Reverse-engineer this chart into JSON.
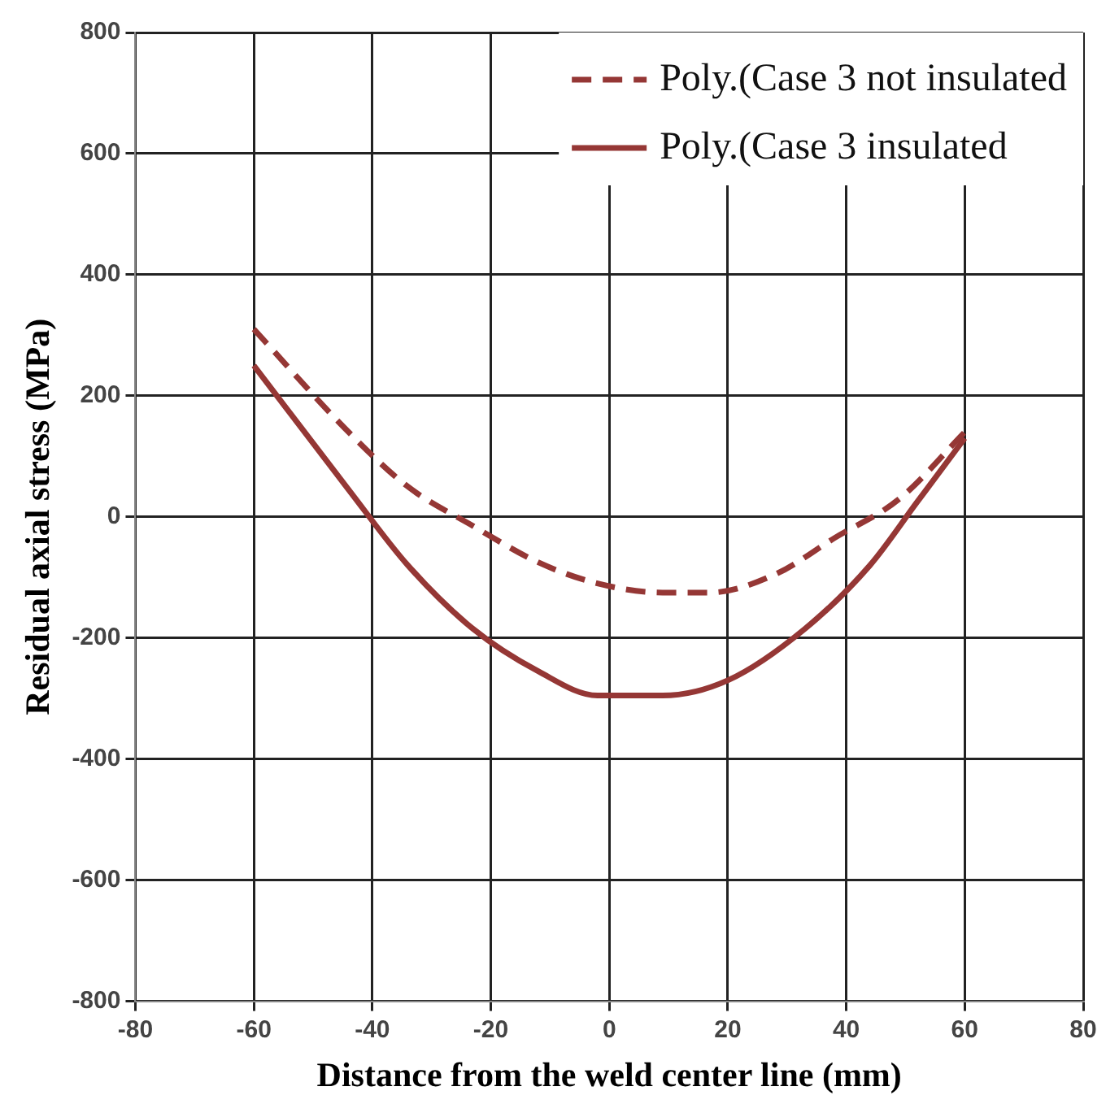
{
  "chart_data": {
    "type": "line",
    "xlabel": "Distance from the weld center line (mm)",
    "ylabel": "Residual axial stress (MPa)",
    "series": [
      {
        "name": "Poly.(Case 3 not insulated",
        "color": "#953735",
        "line_style": "dashed",
        "x": [
          -60,
          -44,
          -34,
          -23,
          -12,
          -2,
          9,
          17,
          28,
          38,
          49,
          60
        ],
        "values": [
          310,
          140,
          50,
          -15,
          -75,
          -110,
          -125,
          -125,
          -95,
          -35,
          30,
          140
        ]
      },
      {
        "name": "Poly.(Case 3 insulated",
        "color": "#953735",
        "line_style": "solid",
        "x": [
          -60,
          -44,
          -34,
          -23,
          -12,
          -2,
          9,
          20,
          33,
          44,
          52,
          60
        ],
        "values": [
          250,
          45,
          -80,
          -185,
          -255,
          -295,
          -295,
          -270,
          -185,
          -80,
          25,
          130
        ]
      }
    ],
    "xlim": [
      -80,
      80
    ],
    "xticks": [
      -80,
      -60,
      -40,
      -20,
      0,
      20,
      40,
      60,
      80
    ],
    "ylim": [
      -800,
      800
    ],
    "yticks": [
      -800,
      -600,
      -400,
      -200,
      0,
      200,
      400,
      600,
      800
    ],
    "grid": true,
    "legend": "top right",
    "marker": "none"
  }
}
